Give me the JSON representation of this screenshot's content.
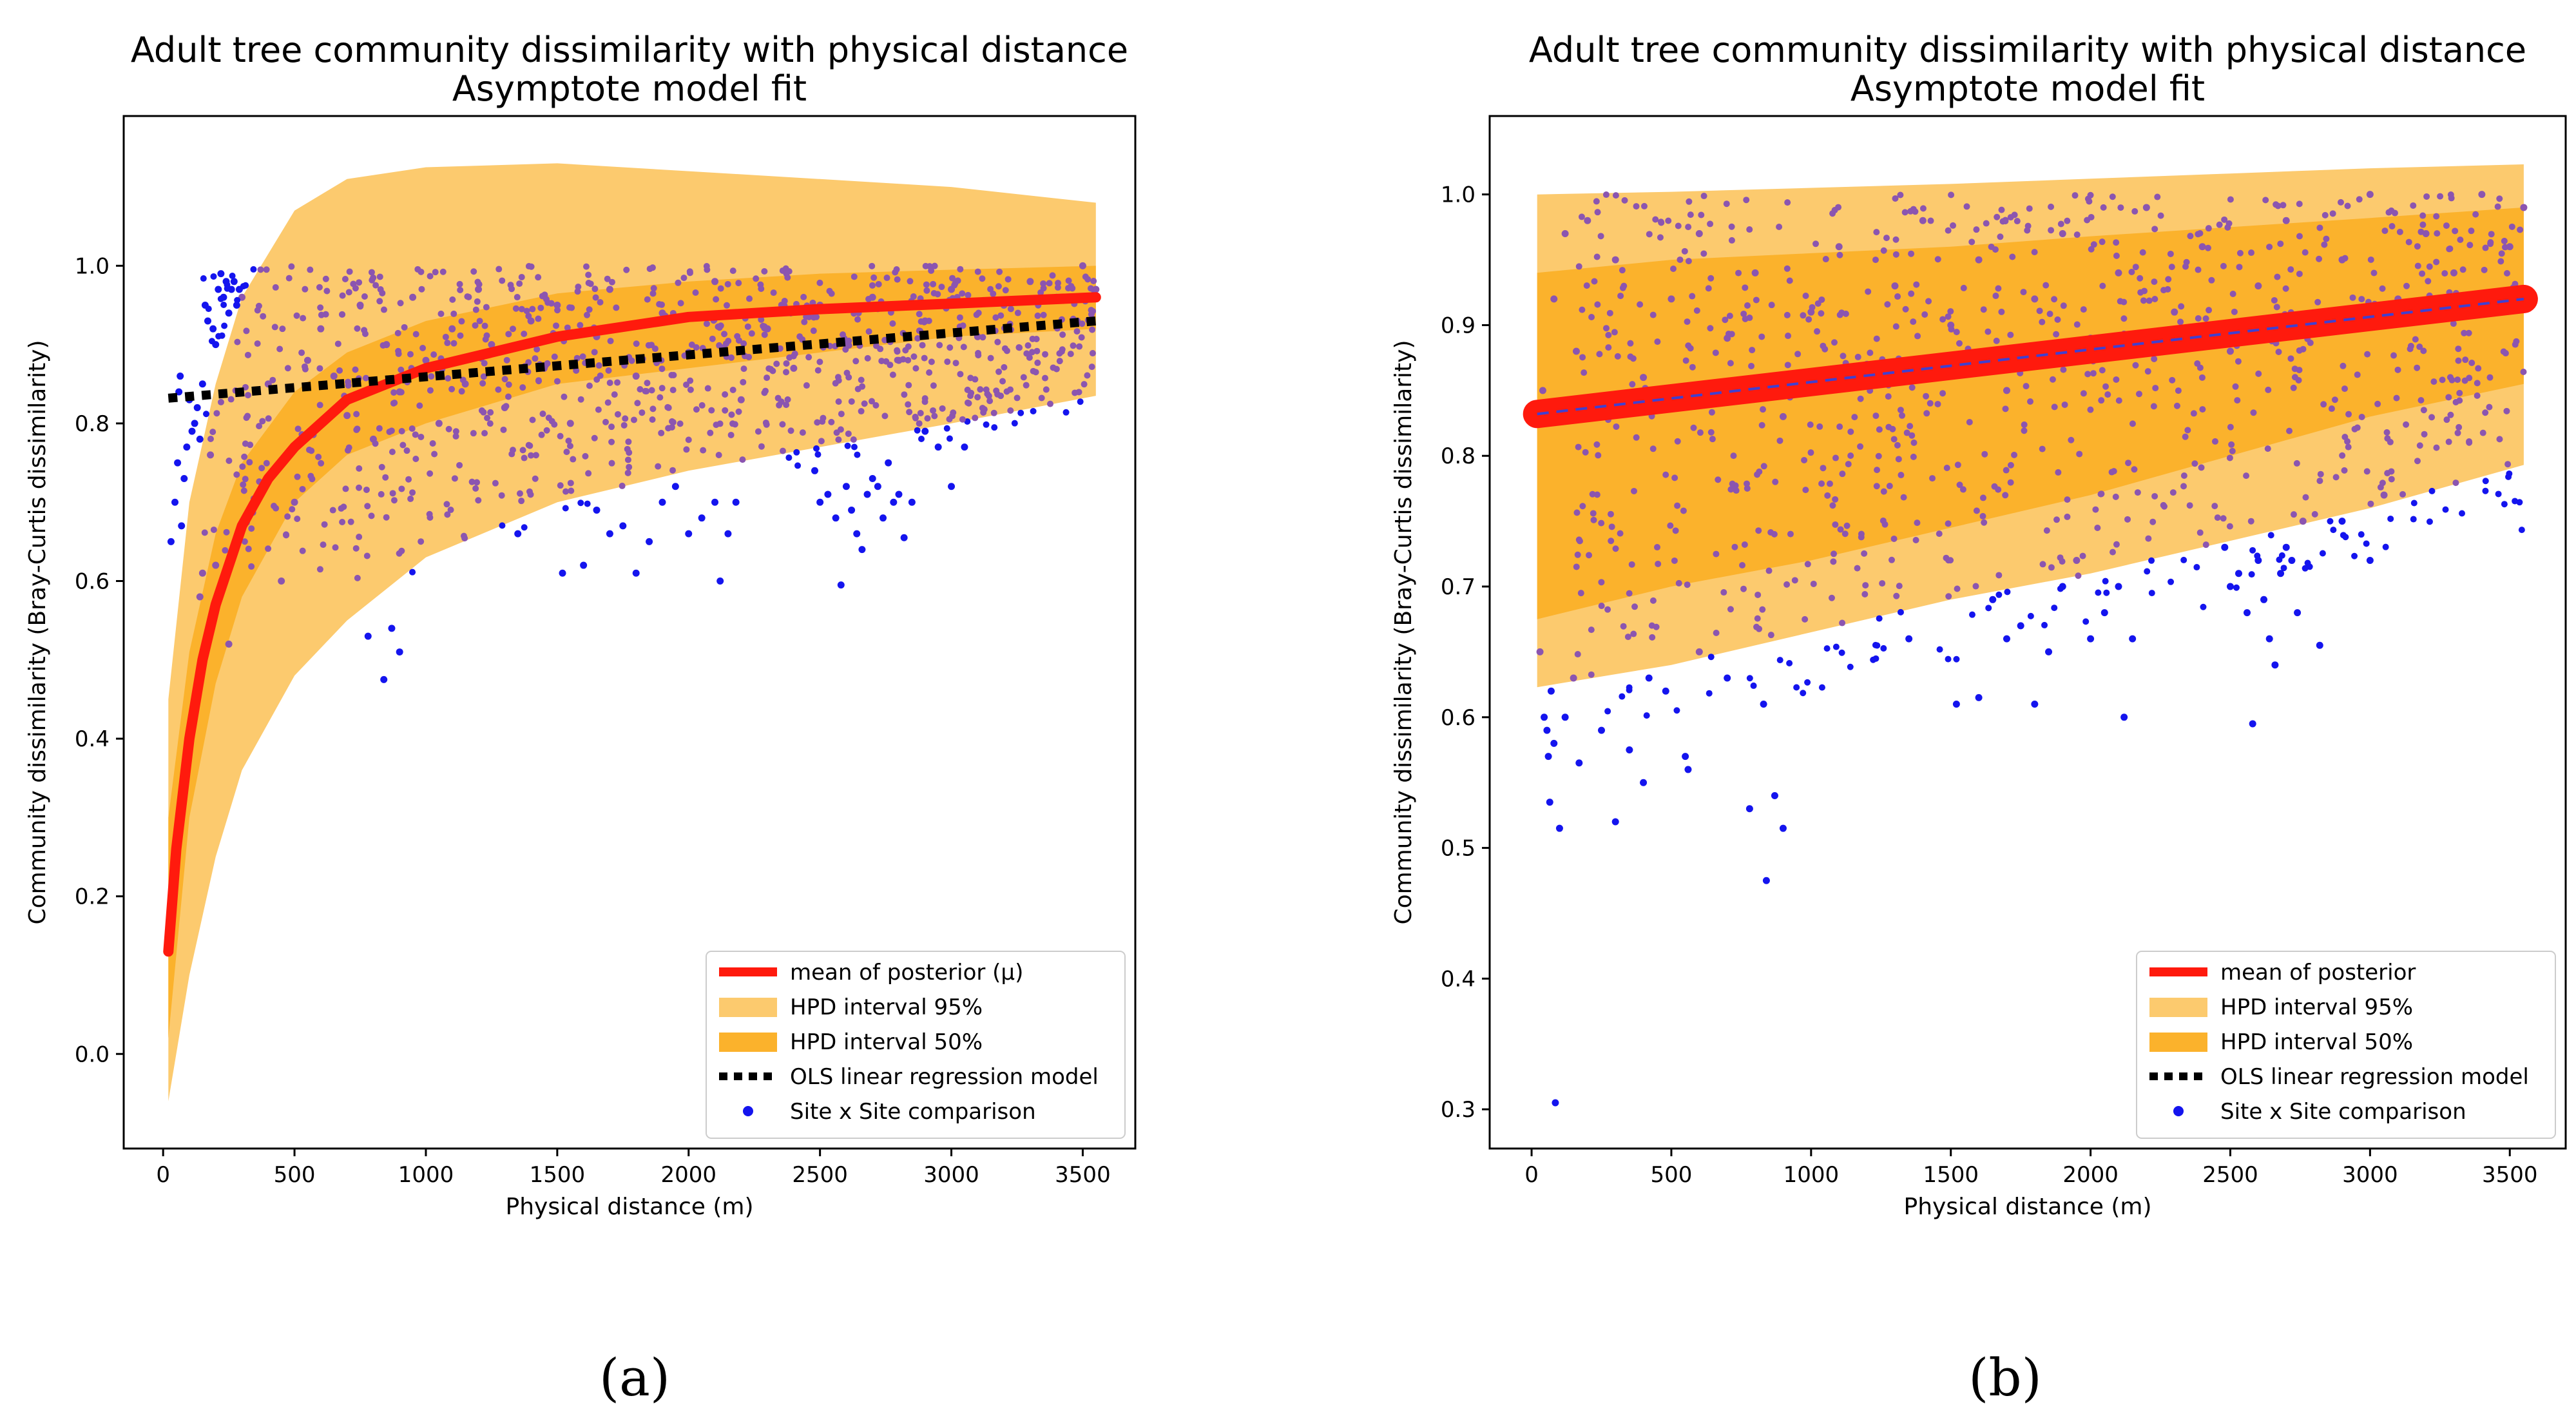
{
  "chart_data": [
    {
      "type": "scatter",
      "panel": "a",
      "caption": "(a)",
      "title": "Adult tree community dissimilarity with physical distance",
      "subtitle": "Asymptote model fit",
      "xlabel": "Physical distance (m)",
      "ylabel": "Community dissimilarity (Bray-Curtis dissimilarity)",
      "xlim": [
        -150,
        3700
      ],
      "ylim": [
        -0.12,
        1.19
      ],
      "xticks": [
        0,
        500,
        1000,
        1500,
        2000,
        2500,
        3000,
        3500
      ],
      "yticks": [
        0.0,
        0.2,
        0.4,
        0.6,
        0.8,
        1.0
      ],
      "ytick_format": 1,
      "legend_position": "lower-right",
      "legend": [
        {
          "key": "mean",
          "label": "mean of posterior (μ)"
        },
        {
          "key": "hpd95",
          "label": "HPD interval 95%"
        },
        {
          "key": "hpd50",
          "label": "HPD interval 50%"
        },
        {
          "key": "ols",
          "label": "OLS linear regression model"
        },
        {
          "key": "points",
          "label": "Site x Site comparison"
        }
      ],
      "colors": {
        "mean": "#ff1a0d",
        "hpd95": "#fcca6e",
        "hpd50": "#fbb22c",
        "ols": "#000000",
        "points_in": "#8b55b0",
        "points_out": "#1414ee"
      },
      "mean_line_width": 16,
      "mean_curve": {
        "x": [
          20,
          50,
          100,
          150,
          200,
          300,
          400,
          500,
          700,
          1000,
          1500,
          2000,
          2500,
          3000,
          3550
        ],
        "y": [
          0.13,
          0.26,
          0.4,
          0.5,
          0.57,
          0.67,
          0.73,
          0.77,
          0.83,
          0.87,
          0.91,
          0.935,
          0.945,
          0.952,
          0.96
        ]
      },
      "hpd95_band": {
        "x": [
          20,
          100,
          200,
          300,
          500,
          700,
          1000,
          1500,
          2000,
          2500,
          3000,
          3550
        ],
        "upper": [
          0.45,
          0.7,
          0.85,
          0.96,
          1.07,
          1.11,
          1.125,
          1.13,
          1.12,
          1.11,
          1.1,
          1.08
        ],
        "lower": [
          -0.06,
          0.1,
          0.25,
          0.36,
          0.48,
          0.55,
          0.63,
          0.7,
          0.74,
          0.77,
          0.8,
          0.835
        ]
      },
      "hpd50_band": {
        "x": [
          20,
          100,
          200,
          300,
          500,
          700,
          1000,
          1500,
          2000,
          2500,
          3000,
          3550
        ],
        "upper": [
          0.3,
          0.51,
          0.66,
          0.75,
          0.84,
          0.89,
          0.93,
          0.965,
          0.98,
          0.99,
          0.995,
          1.0
        ],
        "lower": [
          0.02,
          0.3,
          0.47,
          0.58,
          0.7,
          0.76,
          0.8,
          0.85,
          0.87,
          0.89,
          0.91,
          0.92
        ]
      },
      "ols_line": {
        "x": [
          20,
          3550
        ],
        "y": [
          0.832,
          0.93
        ]
      },
      "points": [
        [
          30,
          0.65
        ],
        [
          45,
          0.7
        ],
        [
          55,
          0.75
        ],
        [
          60,
          0.84
        ],
        [
          65,
          0.86
        ],
        [
          70,
          0.67
        ],
        [
          80,
          0.73
        ],
        [
          90,
          0.77
        ],
        [
          100,
          0.83
        ],
        [
          110,
          0.79
        ],
        [
          120,
          0.8
        ],
        [
          130,
          0.82
        ],
        [
          140,
          0.78
        ],
        [
          150,
          0.85
        ],
        [
          160,
          0.95
        ],
        [
          170,
          0.93
        ],
        [
          180,
          0.76
        ],
        [
          190,
          0.92
        ],
        [
          200,
          0.9
        ],
        [
          210,
          0.97
        ],
        [
          220,
          0.99
        ],
        [
          230,
          0.96
        ],
        [
          240,
          0.98
        ],
        [
          250,
          0.94
        ],
        [
          260,
          0.97
        ],
        [
          270,
          0.98
        ],
        [
          280,
          0.95
        ],
        [
          290,
          0.97
        ],
        [
          300,
          0.96
        ],
        [
          140,
          0.58
        ],
        [
          150,
          0.61
        ],
        [
          200,
          0.62
        ],
        [
          250,
          0.52
        ],
        [
          780,
          0.53
        ],
        [
          840,
          0.475
        ],
        [
          870,
          0.54
        ],
        [
          900,
          0.51
        ],
        [
          1350,
          0.66
        ],
        [
          1520,
          0.61
        ],
        [
          1600,
          0.62
        ],
        [
          1650,
          0.69
        ],
        [
          1700,
          0.66
        ],
        [
          1750,
          0.67
        ],
        [
          1800,
          0.61
        ],
        [
          1850,
          0.65
        ],
        [
          1900,
          0.7
        ],
        [
          1950,
          0.72
        ],
        [
          2000,
          0.66
        ],
        [
          2050,
          0.68
        ],
        [
          2100,
          0.7
        ],
        [
          2120,
          0.6
        ],
        [
          2150,
          0.66
        ],
        [
          2180,
          0.7
        ],
        [
          2480,
          0.74
        ],
        [
          2500,
          0.7
        ],
        [
          2530,
          0.71
        ],
        [
          2560,
          0.68
        ],
        [
          2580,
          0.595
        ],
        [
          2600,
          0.72
        ],
        [
          2620,
          0.69
        ],
        [
          2640,
          0.66
        ],
        [
          2660,
          0.64
        ],
        [
          2680,
          0.71
        ],
        [
          2700,
          0.73
        ],
        [
          2720,
          0.72
        ],
        [
          2740,
          0.68
        ],
        [
          2760,
          0.75
        ],
        [
          2780,
          0.7
        ],
        [
          2800,
          0.71
        ],
        [
          2820,
          0.655
        ],
        [
          2850,
          0.7
        ],
        [
          2900,
          0.79
        ],
        [
          2950,
          0.77
        ],
        [
          3000,
          0.72
        ],
        [
          3050,
          0.77
        ],
        [
          400,
          0.85
        ],
        [
          450,
          0.6
        ],
        [
          500,
          0.7
        ],
        [
          550,
          0.88
        ],
        [
          600,
          0.92
        ],
        [
          650,
          0.86
        ],
        [
          700,
          0.81
        ],
        [
          750,
          0.95
        ],
        [
          800,
          0.78
        ],
        [
          850,
          0.9
        ],
        [
          900,
          0.84
        ],
        [
          950,
          0.96
        ],
        [
          1000,
          0.88
        ],
        [
          1050,
          0.8
        ],
        [
          1100,
          0.92
        ],
        [
          1150,
          0.85
        ],
        [
          1200,
          0.97
        ],
        [
          1250,
          0.9
        ],
        [
          1300,
          0.82
        ],
        [
          1400,
          0.93
        ],
        [
          1450,
          0.87
        ],
        [
          1500,
          0.95
        ],
        [
          1550,
          0.8
        ],
        [
          1650,
          0.91
        ],
        [
          1700,
          0.97
        ],
        [
          1800,
          0.86
        ],
        [
          1900,
          0.94
        ],
        [
          2000,
          0.89
        ],
        [
          2100,
          0.98
        ],
        [
          2200,
          0.83
        ],
        [
          2300,
          0.92
        ],
        [
          2400,
          0.87
        ],
        [
          2500,
          0.95
        ],
        [
          2600,
          0.9
        ],
        [
          2700,
          0.96
        ],
        [
          2800,
          0.88
        ],
        [
          2900,
          0.93
        ],
        [
          3000,
          0.97
        ],
        [
          3100,
          0.91
        ],
        [
          3200,
          0.95
        ],
        [
          3300,
          0.98
        ],
        [
          3400,
          0.96
        ],
        [
          3500,
          1.0
        ],
        [
          3550,
          0.97
        ]
      ]
    },
    {
      "type": "scatter",
      "panel": "b",
      "caption": "(b)",
      "title": "Adult tree community dissimilarity with physical distance",
      "subtitle": "Asymptote model fit",
      "xlabel": "Physical distance (m)",
      "ylabel": "Community dissimilarity (Bray-Curtis dissimilarity)",
      "xlim": [
        -150,
        3700
      ],
      "ylim": [
        0.27,
        1.06
      ],
      "xticks": [
        0,
        500,
        1000,
        1500,
        2000,
        2500,
        3000,
        3500
      ],
      "yticks": [
        0.3,
        0.4,
        0.5,
        0.6,
        0.7,
        0.8,
        0.9,
        1.0
      ],
      "ytick_format": 1,
      "legend_position": "lower-right",
      "legend": [
        {
          "key": "mean",
          "label": "mean of posterior"
        },
        {
          "key": "hpd95",
          "label": "HPD interval 95%"
        },
        {
          "key": "hpd50",
          "label": "HPD interval 50%"
        },
        {
          "key": "ols",
          "label": "OLS linear regression model"
        },
        {
          "key": "points",
          "label": "Site x Site comparison"
        }
      ],
      "colors": {
        "mean": "#ff1a0d",
        "hpd95": "#fcca6e",
        "hpd50": "#fbb22c",
        "ols": "#4040d0",
        "points_in": "#8b55b0",
        "points_out": "#1414ee"
      },
      "mean_line_width": 44,
      "mean_curve": {
        "x": [
          20,
          3550
        ],
        "y": [
          0.832,
          0.92
        ]
      },
      "hpd95_band": {
        "x": [
          20,
          500,
          1000,
          1500,
          2000,
          2500,
          3000,
          3550
        ],
        "upper": [
          1.0,
          1.002,
          1.005,
          1.008,
          1.012,
          1.016,
          1.02,
          1.023
        ],
        "lower": [
          0.623,
          0.64,
          0.665,
          0.69,
          0.71,
          0.735,
          0.76,
          0.793
        ]
      },
      "hpd50_band": {
        "x": [
          20,
          500,
          1000,
          1500,
          2000,
          2500,
          3000,
          3550
        ],
        "upper": [
          0.94,
          0.95,
          0.955,
          0.96,
          0.968,
          0.975,
          0.982,
          0.99
        ],
        "lower": [
          0.675,
          0.7,
          0.72,
          0.745,
          0.77,
          0.8,
          0.83,
          0.855
        ]
      },
      "ols_line": {
        "x": [
          20,
          3550
        ],
        "y": [
          0.832,
          0.92
        ]
      },
      "points": [
        [
          30,
          0.65
        ],
        [
          45,
          0.6
        ],
        [
          55,
          0.59
        ],
        [
          60,
          0.57
        ],
        [
          65,
          0.535
        ],
        [
          70,
          0.62
        ],
        [
          80,
          0.58
        ],
        [
          85,
          0.305
        ],
        [
          100,
          0.515
        ],
        [
          120,
          0.6
        ],
        [
          150,
          0.63
        ],
        [
          170,
          0.565
        ],
        [
          250,
          0.59
        ],
        [
          300,
          0.52
        ],
        [
          350,
          0.575
        ],
        [
          400,
          0.55
        ],
        [
          420,
          0.63
        ],
        [
          480,
          0.62
        ],
        [
          550,
          0.57
        ],
        [
          560,
          0.56
        ],
        [
          600,
          0.65
        ],
        [
          700,
          0.63
        ],
        [
          780,
          0.53
        ],
        [
          840,
          0.475
        ],
        [
          870,
          0.54
        ],
        [
          900,
          0.515
        ],
        [
          830,
          0.61
        ],
        [
          1350,
          0.66
        ],
        [
          1520,
          0.61
        ],
        [
          1600,
          0.615
        ],
        [
          1650,
          0.69
        ],
        [
          1700,
          0.66
        ],
        [
          1750,
          0.67
        ],
        [
          1800,
          0.61
        ],
        [
          1850,
          0.65
        ],
        [
          1900,
          0.7
        ],
        [
          1950,
          0.72
        ],
        [
          2000,
          0.66
        ],
        [
          2050,
          0.68
        ],
        [
          2100,
          0.7
        ],
        [
          2120,
          0.6
        ],
        [
          2150,
          0.66
        ],
        [
          2480,
          0.73
        ],
        [
          2500,
          0.7
        ],
        [
          2530,
          0.71
        ],
        [
          2560,
          0.68
        ],
        [
          2580,
          0.595
        ],
        [
          2600,
          0.72
        ],
        [
          2620,
          0.69
        ],
        [
          2640,
          0.66
        ],
        [
          2660,
          0.64
        ],
        [
          2680,
          0.71
        ],
        [
          2700,
          0.73
        ],
        [
          2720,
          0.72
        ],
        [
          2740,
          0.68
        ],
        [
          2760,
          0.75
        ],
        [
          2820,
          0.655
        ],
        [
          2900,
          0.75
        ],
        [
          3000,
          0.72
        ],
        [
          3050,
          0.77
        ],
        [
          40,
          0.85
        ],
        [
          80,
          0.92
        ],
        [
          120,
          0.97
        ],
        [
          160,
          0.88
        ],
        [
          200,
          0.98
        ],
        [
          300,
          0.95
        ],
        [
          400,
          0.86
        ],
        [
          500,
          0.92
        ],
        [
          600,
          0.97
        ],
        [
          700,
          0.89
        ],
        [
          800,
          0.94
        ],
        [
          900,
          0.83
        ],
        [
          1000,
          0.91
        ],
        [
          1100,
          0.96
        ],
        [
          1200,
          0.87
        ],
        [
          1300,
          0.93
        ],
        [
          1400,
          0.98
        ],
        [
          1500,
          0.9
        ],
        [
          1600,
          0.95
        ],
        [
          1700,
          0.85
        ],
        [
          1800,
          0.92
        ],
        [
          1900,
          0.97
        ],
        [
          2000,
          0.89
        ],
        [
          2100,
          0.94
        ],
        [
          2200,
          0.99
        ],
        [
          2300,
          0.91
        ],
        [
          2400,
          0.96
        ],
        [
          2500,
          0.88
        ],
        [
          2600,
          0.93
        ],
        [
          2700,
          0.98
        ],
        [
          2800,
          0.9
        ],
        [
          2900,
          0.95
        ],
        [
          3000,
          1.0
        ],
        [
          3100,
          0.92
        ],
        [
          3200,
          0.97
        ],
        [
          3300,
          0.94
        ],
        [
          3400,
          1.0
        ],
        [
          3500,
          0.96
        ],
        [
          3550,
          0.99
        ]
      ]
    }
  ]
}
